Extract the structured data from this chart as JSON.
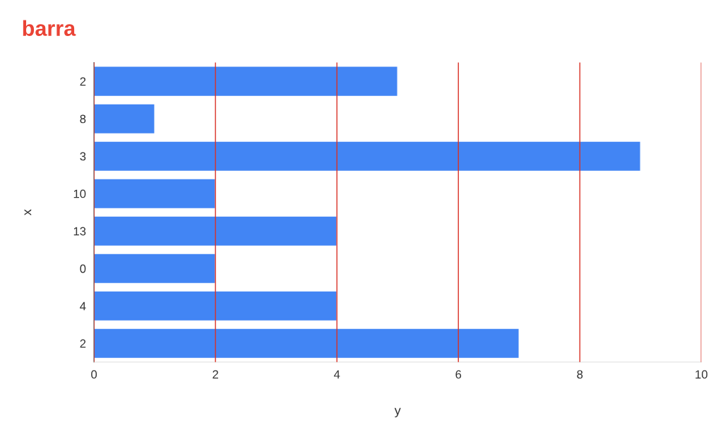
{
  "chart_data": {
    "type": "bar",
    "orientation": "horizontal",
    "title": "barra",
    "xlabel": "y",
    "ylabel": "x",
    "categories": [
      "2",
      "8",
      "3",
      "10",
      "13",
      "0",
      "4",
      "2"
    ],
    "series": [
      {
        "color": "#4285f4",
        "values": [
          5,
          1,
          9,
          2,
          4,
          2,
          4,
          7
        ]
      }
    ],
    "xlim": [
      0,
      10
    ],
    "xticks": [
      0,
      2,
      4,
      6,
      8,
      10
    ],
    "grid": "x"
  }
}
